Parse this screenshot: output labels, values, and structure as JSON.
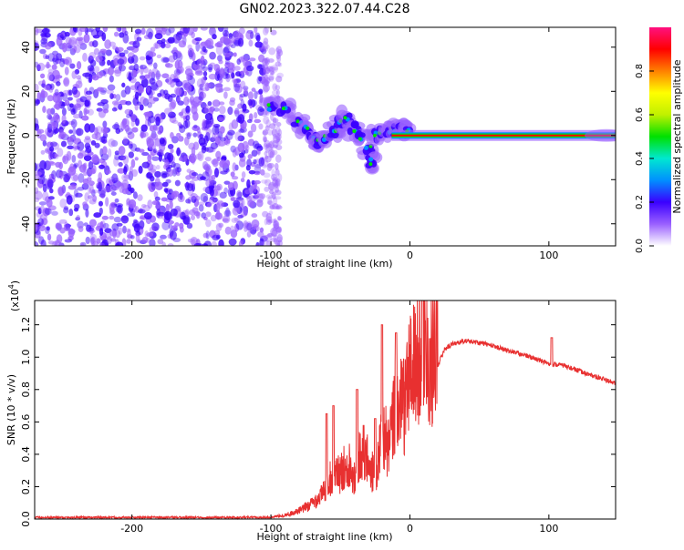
{
  "page": {
    "title": "GN02.2023.322.07.44.C28"
  },
  "chart_data": [
    {
      "type": "heatmap",
      "title": "GN02.2023.322.07.44.C28",
      "xlabel": "Height of straight line (km)",
      "ylabel": "Frequency (Hz)",
      "xlim": [
        -270,
        148
      ],
      "ylim": [
        -50,
        49
      ],
      "xticks": [
        -200,
        -100,
        0,
        100
      ],
      "xtick_labels": [
        "-200",
        "-100",
        "0",
        "100"
      ],
      "yticks": [
        -40,
        -20,
        0,
        20,
        40
      ],
      "ytick_labels": [
        "-40",
        "-20",
        "0",
        "20",
        "40"
      ],
      "colorbar": {
        "label": "Normalized spectral amplitude",
        "range": [
          0,
          1
        ],
        "ticks": [
          0.0,
          0.2,
          0.4,
          0.6,
          0.8
        ],
        "tick_labels": [
          "0.0",
          "0.2",
          "0.4",
          "0.6",
          "0.8"
        ],
        "colors": [
          "#ffffff",
          "#9a60ff",
          "#3a00ff",
          "#0090ff",
          "#00e8d0",
          "#00e000",
          "#c0f000",
          "#ffff00",
          "#ff8000",
          "#ff0000",
          "#ff1080"
        ]
      },
      "features": {
        "noise_region_x": [
          -270,
          -105
        ],
        "bright_line_frequency_hz": 0,
        "bright_line_x": [
          0,
          148
        ]
      }
    },
    {
      "type": "line",
      "xlabel": "Height of straight line (km)",
      "ylabel": "SNR (10 * v/v)",
      "scale_label": "(x10",
      "scale_exponent": "4",
      "xlim": [
        -270,
        148
      ],
      "ylim": [
        0,
        1.35
      ],
      "xticks": [
        -200,
        -100,
        0,
        100
      ],
      "xtick_labels": [
        "-200",
        "-100",
        "0",
        "100"
      ],
      "yticks": [
        0.0,
        0.2,
        0.4,
        0.6,
        0.8,
        1.0,
        1.2
      ],
      "ytick_labels": [
        "0.0",
        "0.2",
        "0.4",
        "0.6",
        "0.8",
        "1.0",
        "1.2"
      ],
      "line_color": "#e83030",
      "series": [
        {
          "x": [
            -270,
            -200,
            -150,
            -100,
            -90,
            -80,
            -70,
            -60,
            -55,
            -50,
            -45,
            -40,
            -35,
            -30,
            -25,
            -20,
            -15,
            -10,
            -5,
            0,
            5,
            10,
            15,
            20,
            25,
            30,
            40,
            50,
            60,
            70,
            80,
            90,
            100,
            110,
            120,
            130,
            140,
            148
          ],
          "values": [
            0.01,
            0.01,
            0.01,
            0.01,
            0.02,
            0.04,
            0.08,
            0.15,
            0.25,
            0.22,
            0.3,
            0.22,
            0.35,
            0.3,
            0.2,
            0.45,
            0.35,
            0.6,
            0.55,
            0.75,
            0.8,
            0.95,
            0.82,
            0.95,
            1.05,
            1.08,
            1.1,
            1.09,
            1.07,
            1.04,
            1.02,
            0.99,
            0.96,
            0.95,
            0.92,
            0.89,
            0.86,
            0.84
          ]
        }
      ],
      "peaks": [
        {
          "x": -60,
          "value": 0.65
        },
        {
          "x": -55,
          "value": 0.7
        },
        {
          "x": -38,
          "value": 0.8
        },
        {
          "x": -25,
          "value": 0.62
        },
        {
          "x": -20,
          "value": 1.2
        },
        {
          "x": -10,
          "value": 1.15
        },
        {
          "x": 9,
          "value": 1.35
        },
        {
          "x": 102,
          "value": 1.12
        }
      ]
    }
  ]
}
